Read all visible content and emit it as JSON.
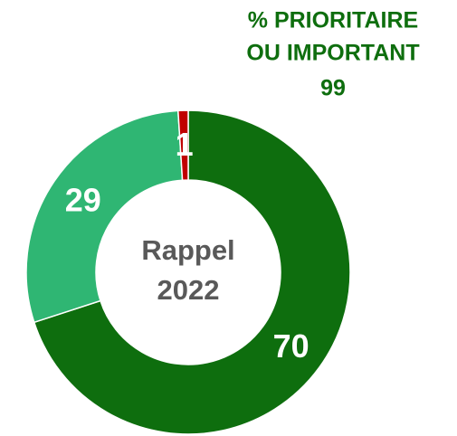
{
  "chart_data": {
    "type": "donut",
    "values": [
      70,
      29,
      1
    ],
    "colors": [
      "#0e6e0e",
      "#2fb673",
      "#c00000"
    ],
    "center_label": [
      "Rappel",
      "2022"
    ],
    "annotation": {
      "lines": [
        "% PRIORITAIRE",
        "OU IMPORTANT"
      ],
      "value": 99,
      "color": "#0e6e0e"
    }
  }
}
